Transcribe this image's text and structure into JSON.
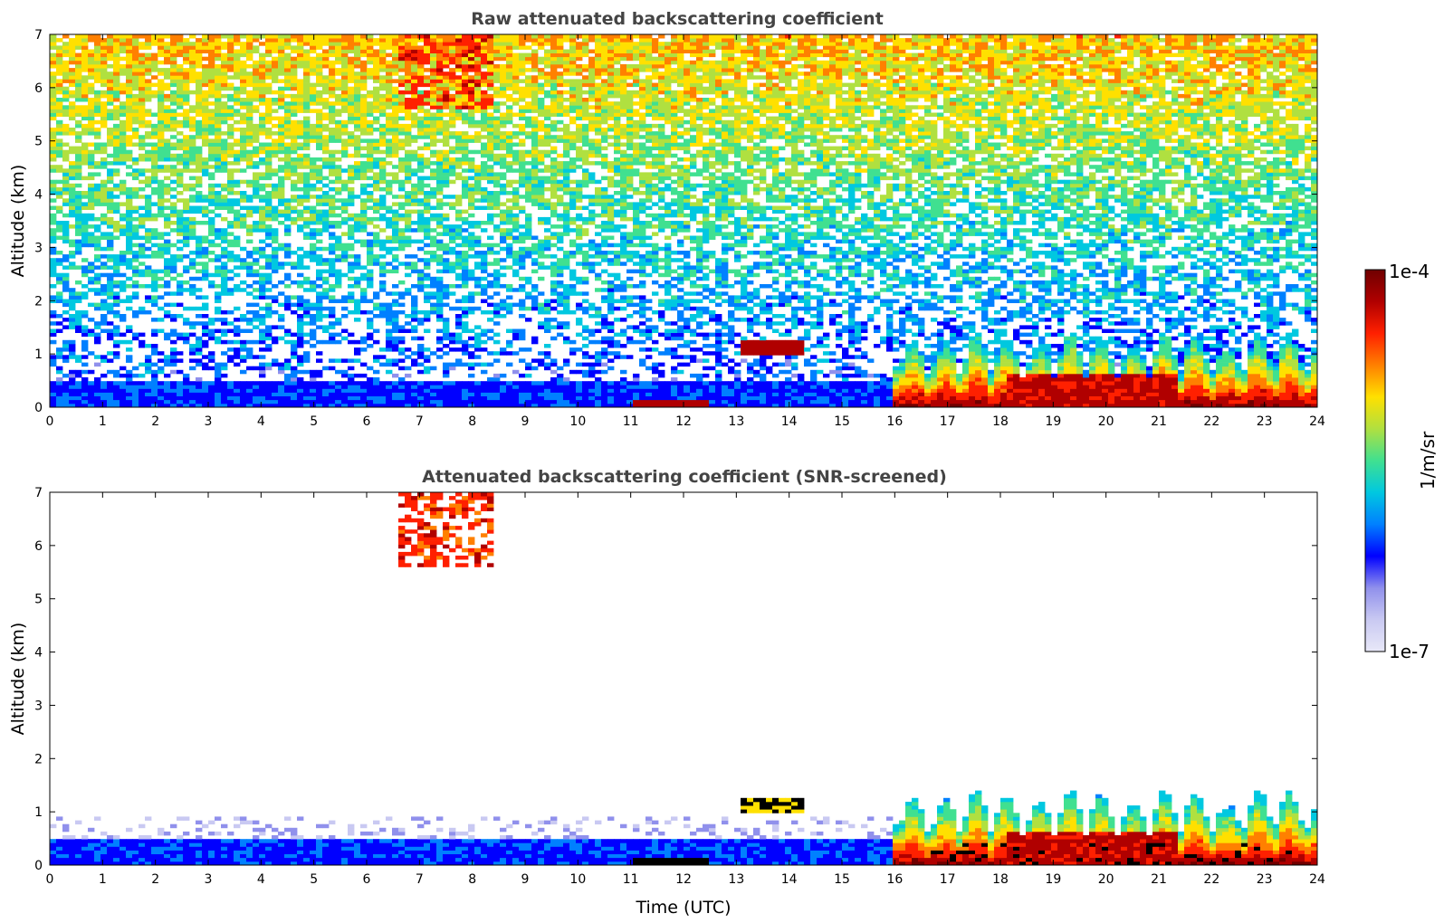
{
  "chart_data": [
    {
      "type": "heatmap",
      "title": "Raw attenuated backscattering coefficient",
      "xlabel": "",
      "ylabel": "Altitude (km)",
      "xlim": [
        0,
        24
      ],
      "ylim": [
        0,
        7
      ],
      "xticks": [
        "0",
        "1",
        "2",
        "3",
        "4",
        "5",
        "6",
        "7",
        "8",
        "9",
        "10",
        "11",
        "12",
        "13",
        "14",
        "15",
        "16",
        "17",
        "18",
        "19",
        "20",
        "21",
        "22",
        "23",
        "24"
      ],
      "yticks": [
        "0",
        "1",
        "2",
        "3",
        "4",
        "5",
        "6",
        "7"
      ],
      "screened": false
    },
    {
      "type": "heatmap",
      "title": "Attenuated backscattering coefficient (SNR-screened)",
      "xlabel": "Time (UTC)",
      "ylabel": "Altitude (km)",
      "xlim": [
        0,
        24
      ],
      "ylim": [
        0,
        7
      ],
      "xticks": [
        "0",
        "1",
        "2",
        "3",
        "4",
        "5",
        "6",
        "7",
        "8",
        "9",
        "10",
        "11",
        "12",
        "13",
        "14",
        "15",
        "16",
        "17",
        "18",
        "19",
        "20",
        "21",
        "22",
        "23",
        "24"
      ],
      "yticks": [
        "0",
        "1",
        "2",
        "3",
        "4",
        "5",
        "6",
        "7"
      ],
      "screened": true
    }
  ],
  "colorbar": {
    "max_label": "1e-4",
    "min_label": "1e-7",
    "unit_label": "1/m/sr",
    "colors": [
      "#e8e8f8",
      "#c9c9f2",
      "#9090ec",
      "#0000ff",
      "#0080ff",
      "#00c8e0",
      "#40e090",
      "#b0e040",
      "#ffe000",
      "#ff8000",
      "#ff2000",
      "#b00000",
      "#700000"
    ]
  },
  "features": {
    "boundary_layer_top_km": 0.45,
    "cirrus_km": [
      5.6,
      7.0
    ],
    "cirrus_utc": [
      6.5,
      8.3
    ],
    "convective_start_utc": 15.9
  }
}
